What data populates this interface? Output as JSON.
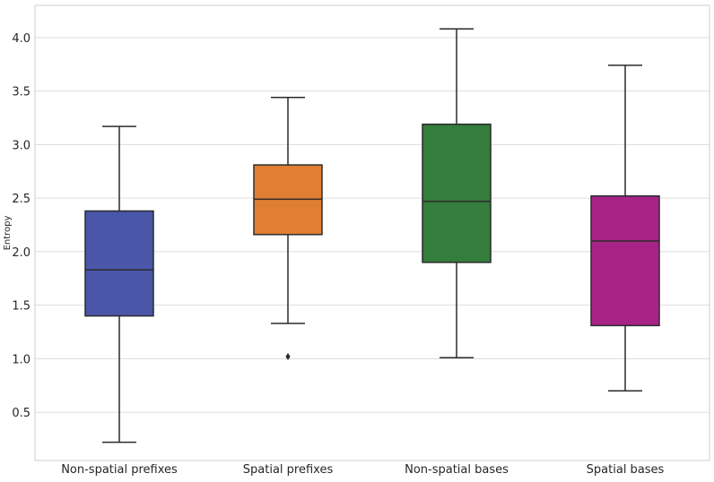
{
  "chart_data": {
    "type": "box",
    "title": "",
    "xlabel": "",
    "ylabel": "Entropy",
    "ylim": [
      0.05,
      4.3
    ],
    "yticks": [
      0.5,
      1.0,
      1.5,
      2.0,
      2.5,
      3.0,
      3.5,
      4.0
    ],
    "ytick_labels": [
      "0.5",
      "1.0",
      "1.5",
      "2.0",
      "2.5",
      "3.0",
      "3.5",
      "4.0"
    ],
    "grid": true,
    "categories": [
      "Non-spatial prefixes",
      "Spatial prefixes",
      "Non-spatial bases",
      "Spatial bases"
    ],
    "boxes": [
      {
        "name": "Non-spatial prefixes",
        "whisker_low": 0.22,
        "q1": 1.4,
        "median": 1.83,
        "q3": 2.38,
        "whisker_high": 3.17,
        "outliers": [],
        "color": "#4a56a8"
      },
      {
        "name": "Spatial prefixes",
        "whisker_low": 1.33,
        "q1": 2.16,
        "median": 2.49,
        "q3": 2.81,
        "whisker_high": 3.44,
        "outliers": [
          1.02
        ],
        "color": "#e07f34"
      },
      {
        "name": "Non-spatial bases",
        "whisker_low": 1.01,
        "q1": 1.9,
        "median": 2.47,
        "q3": 3.19,
        "whisker_high": 4.08,
        "outliers": [],
        "color": "#347d3c"
      },
      {
        "name": "Spatial bases",
        "whisker_low": 0.7,
        "q1": 1.31,
        "median": 2.1,
        "q3": 2.52,
        "whisker_high": 3.74,
        "outliers": [],
        "color": "#a82386"
      }
    ]
  }
}
